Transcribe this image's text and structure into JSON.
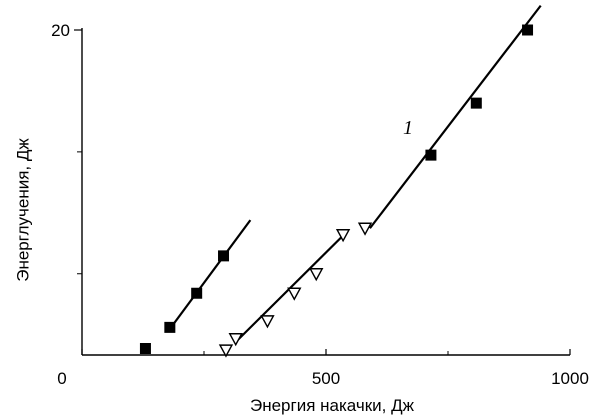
{
  "chart_data": {
    "type": "scatter",
    "title": "",
    "xlabel": "Энергия накачки, Дж",
    "ylabel": "Энерглучения, Дж",
    "xlim": [
      0,
      1000
    ],
    "ylim": [
      0,
      20
    ],
    "xticks": [
      0,
      500,
      1000
    ],
    "yticks": [
      20
    ],
    "xtick_labels": [
      "0",
      "500",
      "1000"
    ],
    "ytick_labels": [
      "20"
    ],
    "annotation": "1",
    "series": [
      {
        "marker": "square",
        "points": [
          [
            130,
            0.4
          ],
          [
            180,
            1.7
          ],
          [
            235,
            3.8
          ],
          [
            290,
            6.1
          ]
        ],
        "fit": [
          [
            180,
            1.6
          ],
          [
            345,
            8.3
          ]
        ]
      },
      {
        "marker": "triangle-down",
        "points": [
          [
            295,
            0.3
          ],
          [
            315,
            1.0
          ],
          [
            380,
            2.1
          ],
          [
            435,
            3.8
          ],
          [
            480,
            5.0
          ],
          [
            535,
            7.4
          ],
          [
            580,
            7.8
          ]
        ],
        "fit": [
          [
            315,
            0.8
          ],
          [
            540,
            7.5
          ]
        ]
      },
      {
        "marker": "square",
        "points": [
          [
            715,
            12.3
          ],
          [
            808,
            15.5
          ],
          [
            913,
            20.0
          ]
        ],
        "fit": [
          [
            590,
            7.8
          ],
          [
            940,
            21.5
          ]
        ]
      }
    ]
  }
}
